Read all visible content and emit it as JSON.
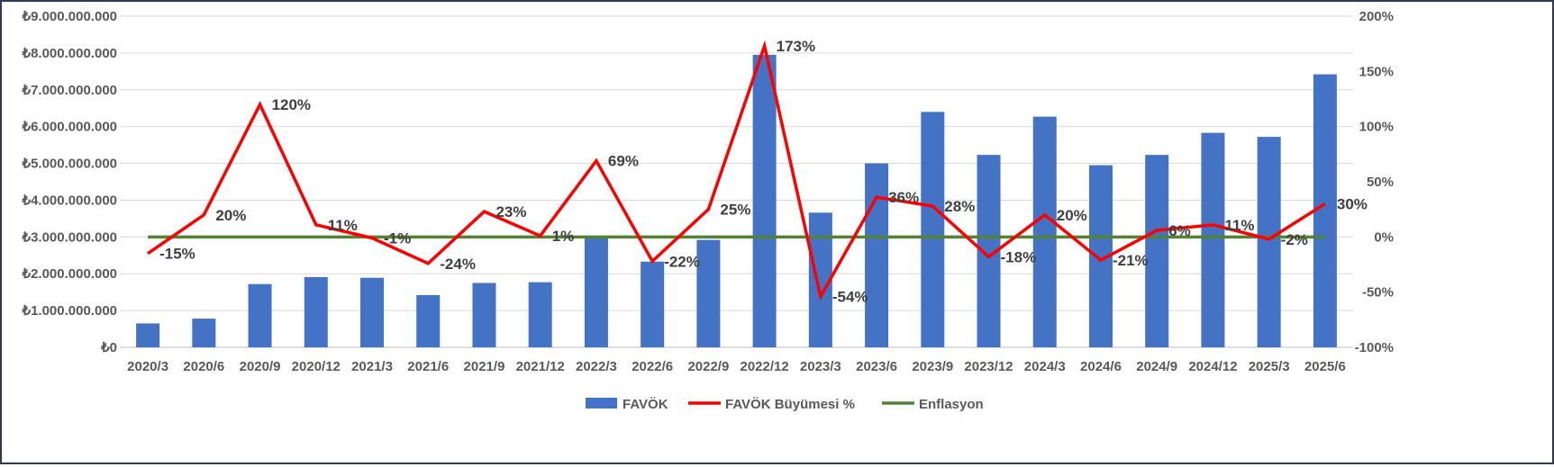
{
  "chart_data": {
    "type": "bar",
    "title": "",
    "categories": [
      "2020/3",
      "2020/6",
      "2020/9",
      "2020/12",
      "2021/3",
      "2021/6",
      "2021/9",
      "2021/12",
      "2022/3",
      "2022/6",
      "2022/9",
      "2022/12",
      "2023/3",
      "2023/6",
      "2023/9",
      "2023/12",
      "2024/3",
      "2024/6",
      "2024/9",
      "2024/12",
      "2025/3",
      "2025/6"
    ],
    "series": [
      {
        "name": "FAVÖK",
        "type": "bar",
        "axis": "left",
        "color": "#4472c4",
        "values": [
          650000000,
          780000000,
          1720000000,
          1910000000,
          1890000000,
          1420000000,
          1750000000,
          1770000000,
          3000000000,
          2330000000,
          2920000000,
          7950000000,
          3660000000,
          5000000000,
          6400000000,
          5230000000,
          6270000000,
          4950000000,
          5230000000,
          5830000000,
          5720000000,
          7420000000
        ]
      },
      {
        "name": "FAVÖK Büyümesi %",
        "type": "line",
        "axis": "right",
        "color": "#ff0000",
        "values": [
          -15,
          20,
          120,
          11,
          -1,
          -24,
          23,
          1,
          69,
          -22,
          25,
          173,
          -54,
          36,
          28,
          -18,
          20,
          -21,
          6,
          11,
          -2,
          30
        ],
        "labels": [
          "-15%",
          "20%",
          "120%",
          "11%",
          "-1%",
          "-24%",
          "23%",
          "1%",
          "69%",
          "-22%",
          "25%",
          "173%",
          "-54%",
          "36%",
          "28%",
          "-18%",
          "20%",
          "-21%",
          "6%",
          "11%",
          "-2%",
          "30%"
        ]
      },
      {
        "name": "Enflasyon",
        "type": "line",
        "axis": "right",
        "color": "#548235",
        "values": [
          0,
          0,
          0,
          0,
          0,
          0,
          0,
          0,
          0,
          0,
          0,
          0,
          0,
          0,
          0,
          0,
          0,
          0,
          0,
          0,
          0,
          0
        ]
      }
    ],
    "ylim": [
      0,
      9000000000
    ],
    "y_ticks": [
      "₺0",
      "₺1.000.000.000",
      "₺2.000.000.000",
      "₺3.000.000.000",
      "₺4.000.000.000",
      "₺5.000.000.000",
      "₺6.000.000.000",
      "₺7.000.000.000",
      "₺8.000.000.000",
      "₺9.000.000.000"
    ],
    "y2lim": [
      -100,
      200
    ],
    "y2_ticks": [
      "-100%",
      "-50%",
      "0%",
      "50%",
      "100%",
      "150%",
      "200%"
    ],
    "grid": true,
    "legend_position": "bottom"
  }
}
